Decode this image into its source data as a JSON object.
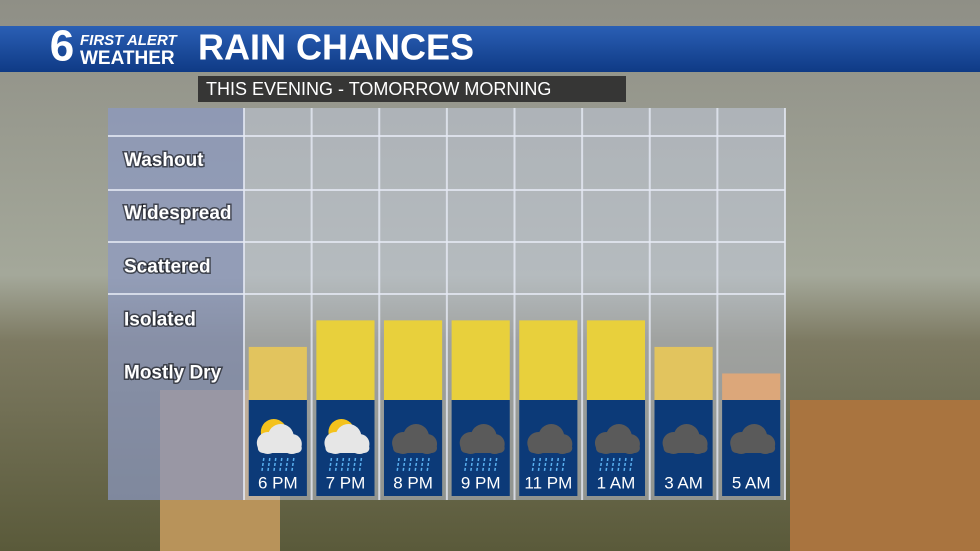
{
  "chart_data": {
    "type": "bar",
    "logo": {
      "number": "6",
      "line1": "FIRST ALERT",
      "line2": "WEATHER"
    },
    "title": "RAIN CHANCES",
    "subtitle": "THIS EVENING - TOMORROW MORNING",
    "categories": [
      "6 PM",
      "7 PM",
      "8 PM",
      "9 PM",
      "11 PM",
      "1 AM",
      "3 AM",
      "5 AM"
    ],
    "values": [
      1,
      1.5,
      1.5,
      1.5,
      1.5,
      1.5,
      1,
      0.5
    ],
    "colors": [
      "#e2c45e",
      "#e8d03c",
      "#e8d03c",
      "#e8d03c",
      "#e8d03c",
      "#e8d03c",
      "#e2c45e",
      "#dca77a"
    ],
    "ylim": [
      0,
      5.5
    ],
    "yticks": [
      {
        "value": 0.5,
        "label": "Mostly Dry"
      },
      {
        "value": 1.5,
        "label": "Isolated"
      },
      {
        "value": 2.5,
        "label": "Scattered"
      },
      {
        "value": 3.5,
        "label": "Widespread"
      },
      {
        "value": 4.5,
        "label": "Washout"
      }
    ]
  }
}
